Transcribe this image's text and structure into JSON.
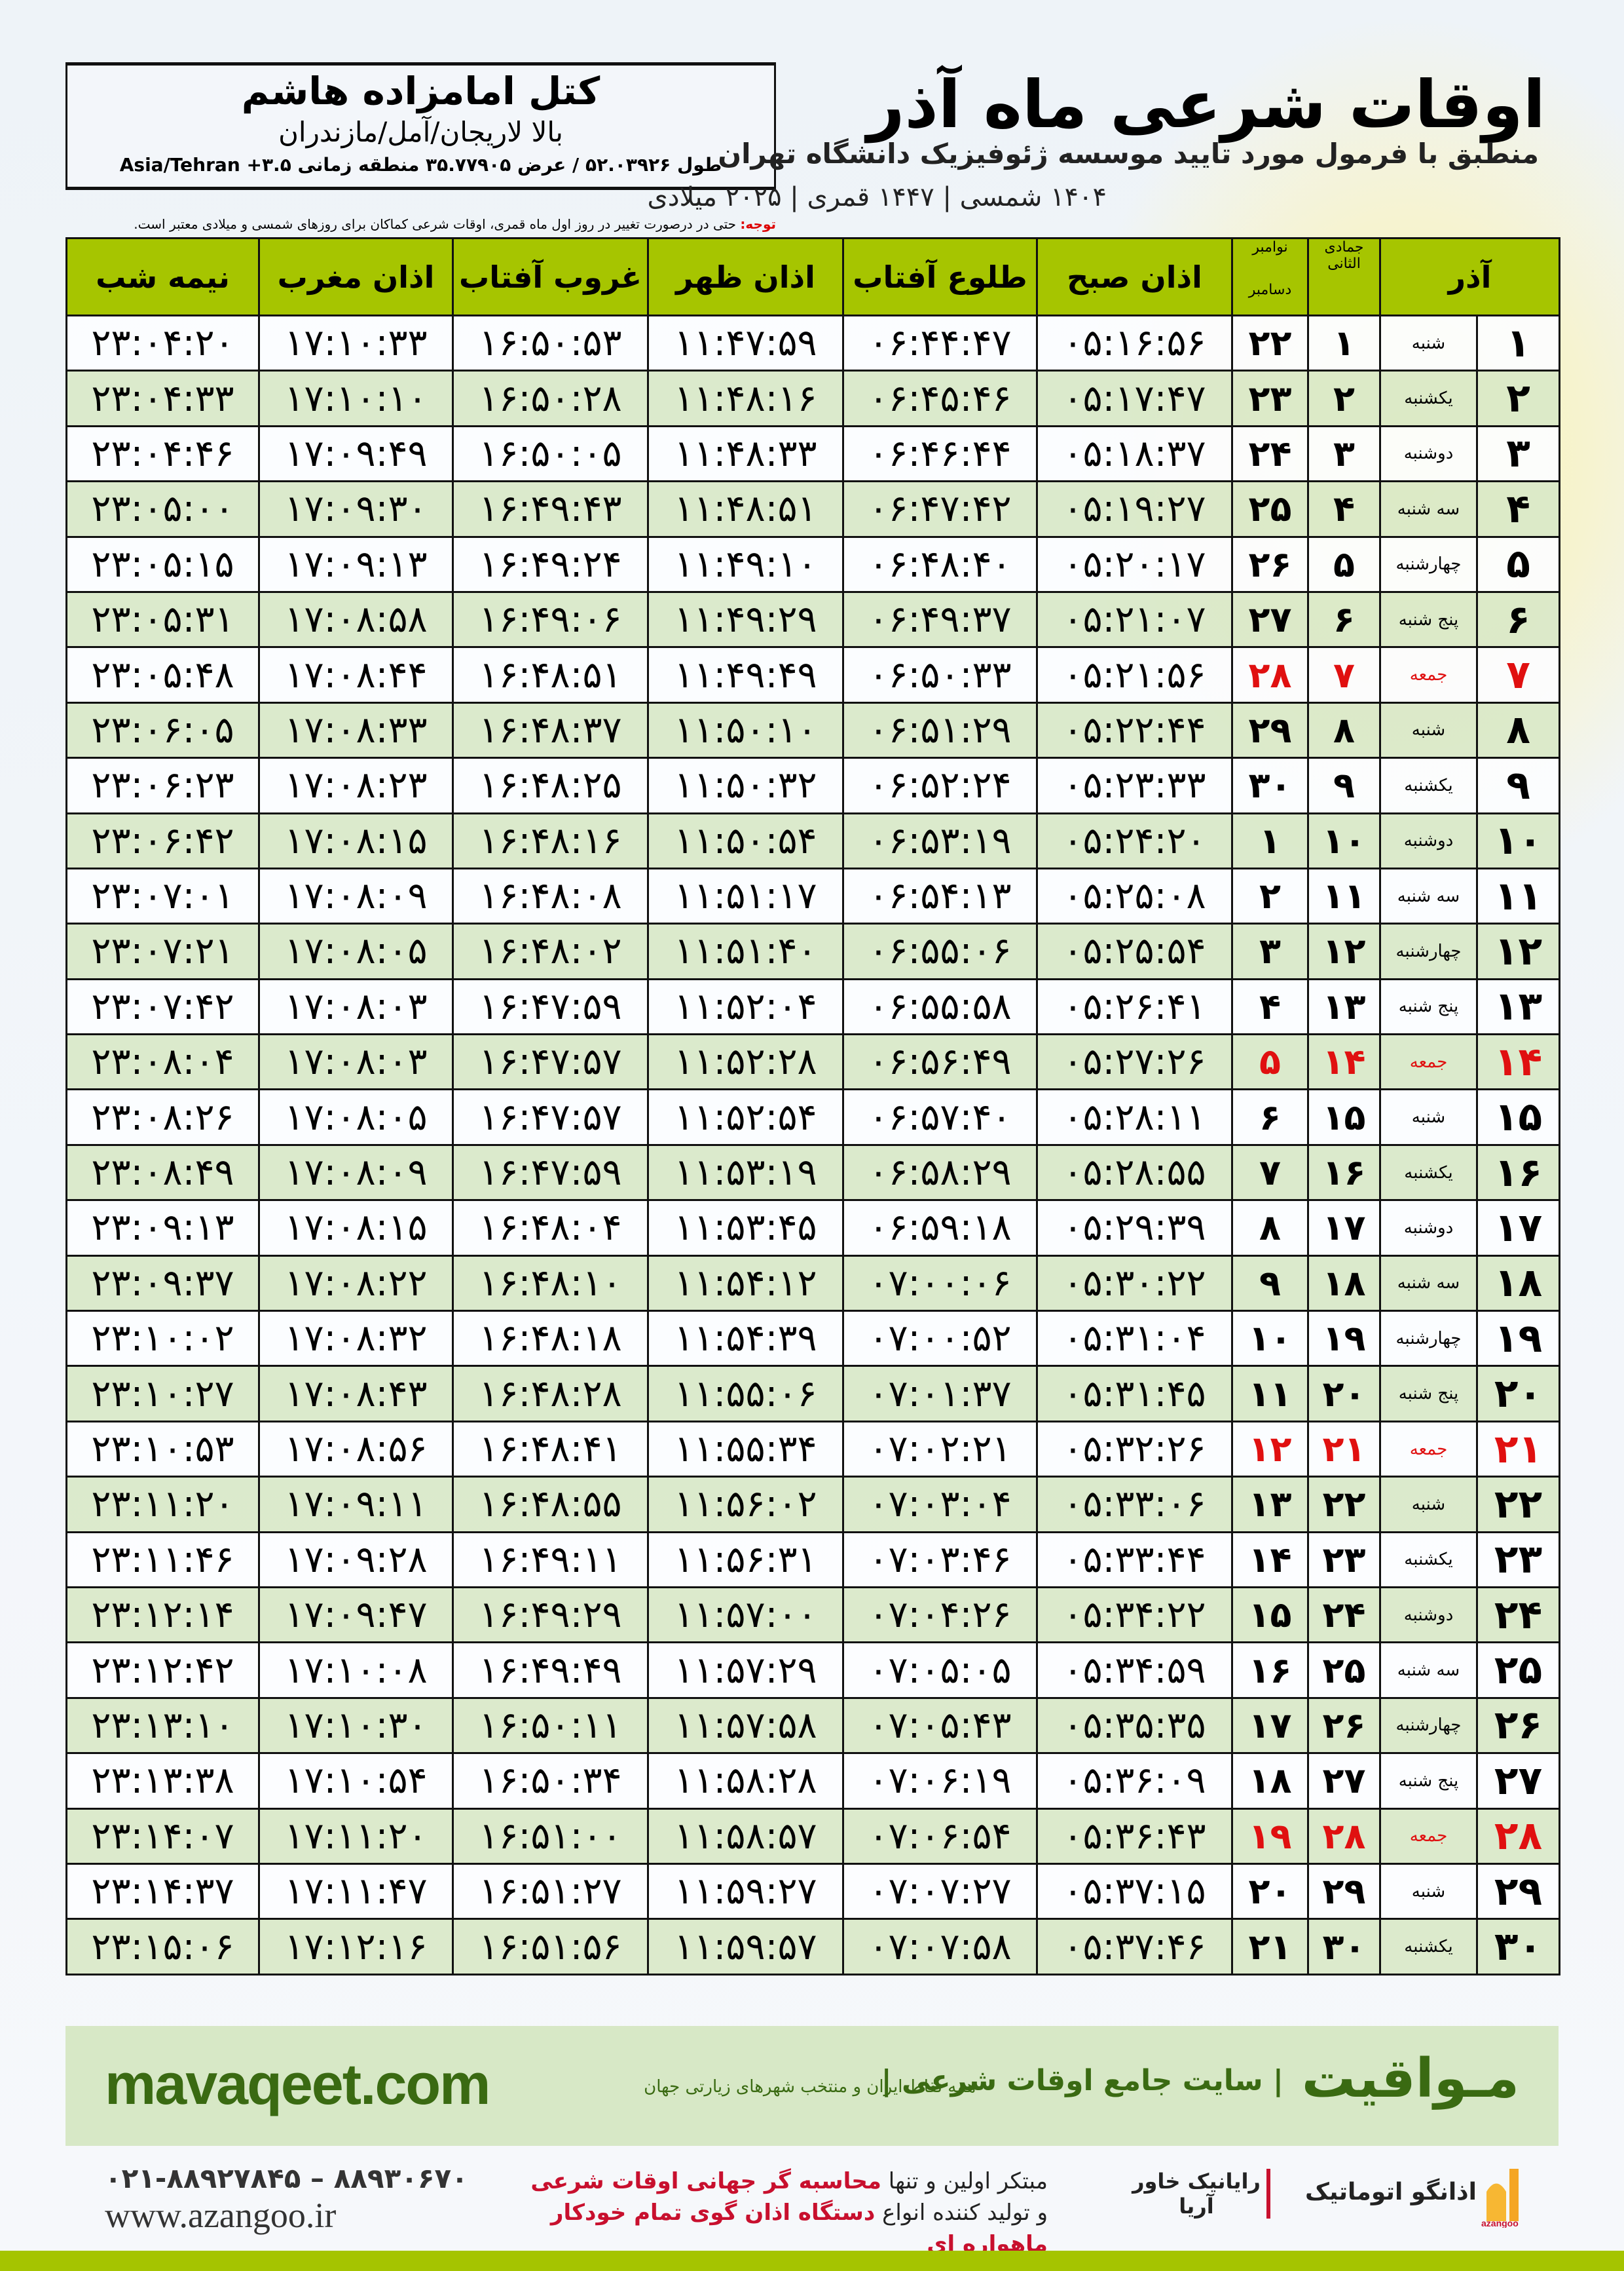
{
  "location": {
    "name": "کتل امامزاده هاشم",
    "region": "بالا لاریجان/آمل/مازندران",
    "coords": "طول ۵۲.۰۳۹۲۶ / عرض ۳۵.۷۷۹۰۵ منطقه زمانی ۳.۵+ Asia/Tehran"
  },
  "header": {
    "title": "اوقات شرعی ماه آذر",
    "subtitle": "منطبق با فرمول مورد تایید موسسه ژئوفیزیک دانشگاه تهران",
    "years": "۱۴۰۴ شمسی | ۱۴۴۷ قمری | ۲۰۲۵ میلادی"
  },
  "note": {
    "label": "توجه:",
    "text": " حتی در درصورت تغییر در روز اول ماه قمری، اوقات شرعی کماکان برای روزهای شمسی و میلادی معتبر است."
  },
  "columns": {
    "month": "آذر",
    "qamari": "جمادی الثانی",
    "miladi_top": "نوامبر",
    "miladi_bottom": "دسامبر",
    "sobh": "اذان صبح",
    "tolu": "طلوع آفتاب",
    "zohr": "اذان ظهر",
    "ghoroob": "غروب آفتاب",
    "maghrib": "اذان مغرب",
    "nimeshab": "نیمه شب"
  },
  "colors": {
    "header": "#a6c500",
    "alt_row": "#d9e8c8",
    "friday": "#e01010",
    "brand": "#3a6a12"
  },
  "rows": [
    [
      "۱",
      "شنبه",
      "۱",
      "۲۲",
      "۰۵:۱۶:۵۶",
      "۰۶:۴۴:۴۷",
      "۱۱:۴۷:۵۹",
      "۱۶:۵۰:۵۳",
      "۱۷:۱۰:۳۳",
      "۲۳:۰۴:۲۰"
    ],
    [
      "۲",
      "یکشنبه",
      "۲",
      "۲۳",
      "۰۵:۱۷:۴۷",
      "۰۶:۴۵:۴۶",
      "۱۱:۴۸:۱۶",
      "۱۶:۵۰:۲۸",
      "۱۷:۱۰:۱۰",
      "۲۳:۰۴:۳۳"
    ],
    [
      "۳",
      "دوشنبه",
      "۳",
      "۲۴",
      "۰۵:۱۸:۳۷",
      "۰۶:۴۶:۴۴",
      "۱۱:۴۸:۳۳",
      "۱۶:۵۰:۰۵",
      "۱۷:۰۹:۴۹",
      "۲۳:۰۴:۴۶"
    ],
    [
      "۴",
      "سه شنبه",
      "۴",
      "۲۵",
      "۰۵:۱۹:۲۷",
      "۰۶:۴۷:۴۲",
      "۱۱:۴۸:۵۱",
      "۱۶:۴۹:۴۳",
      "۱۷:۰۹:۳۰",
      "۲۳:۰۵:۰۰"
    ],
    [
      "۵",
      "چهارشنبه",
      "۵",
      "۲۶",
      "۰۵:۲۰:۱۷",
      "۰۶:۴۸:۴۰",
      "۱۱:۴۹:۱۰",
      "۱۶:۴۹:۲۴",
      "۱۷:۰۹:۱۳",
      "۲۳:۰۵:۱۵"
    ],
    [
      "۶",
      "پنج شنبه",
      "۶",
      "۲۷",
      "۰۵:۲۱:۰۷",
      "۰۶:۴۹:۳۷",
      "۱۱:۴۹:۲۹",
      "۱۶:۴۹:۰۶",
      "۱۷:۰۸:۵۸",
      "۲۳:۰۵:۳۱"
    ],
    [
      "۷",
      "جمعه",
      "۷",
      "۲۸",
      "۰۵:۲۱:۵۶",
      "۰۶:۵۰:۳۳",
      "۱۱:۴۹:۴۹",
      "۱۶:۴۸:۵۱",
      "۱۷:۰۸:۴۴",
      "۲۳:۰۵:۴۸"
    ],
    [
      "۸",
      "شنبه",
      "۸",
      "۲۹",
      "۰۵:۲۲:۴۴",
      "۰۶:۵۱:۲۹",
      "۱۱:۵۰:۱۰",
      "۱۶:۴۸:۳۷",
      "۱۷:۰۸:۳۳",
      "۲۳:۰۶:۰۵"
    ],
    [
      "۹",
      "یکشنبه",
      "۹",
      "۳۰",
      "۰۵:۲۳:۳۳",
      "۰۶:۵۲:۲۴",
      "۱۱:۵۰:۳۲",
      "۱۶:۴۸:۲۵",
      "۱۷:۰۸:۲۳",
      "۲۳:۰۶:۲۳"
    ],
    [
      "۱۰",
      "دوشنبه",
      "۱۰",
      "۱",
      "۰۵:۲۴:۲۰",
      "۰۶:۵۳:۱۹",
      "۱۱:۵۰:۵۴",
      "۱۶:۴۸:۱۶",
      "۱۷:۰۸:۱۵",
      "۲۳:۰۶:۴۲"
    ],
    [
      "۱۱",
      "سه شنبه",
      "۱۱",
      "۲",
      "۰۵:۲۵:۰۸",
      "۰۶:۵۴:۱۳",
      "۱۱:۵۱:۱۷",
      "۱۶:۴۸:۰۸",
      "۱۷:۰۸:۰۹",
      "۲۳:۰۷:۰۱"
    ],
    [
      "۱۲",
      "چهارشنبه",
      "۱۲",
      "۳",
      "۰۵:۲۵:۵۴",
      "۰۶:۵۵:۰۶",
      "۱۱:۵۱:۴۰",
      "۱۶:۴۸:۰۲",
      "۱۷:۰۸:۰۵",
      "۲۳:۰۷:۲۱"
    ],
    [
      "۱۳",
      "پنج شنبه",
      "۱۳",
      "۴",
      "۰۵:۲۶:۴۱",
      "۰۶:۵۵:۵۸",
      "۱۱:۵۲:۰۴",
      "۱۶:۴۷:۵۹",
      "۱۷:۰۸:۰۳",
      "۲۳:۰۷:۴۲"
    ],
    [
      "۱۴",
      "جمعه",
      "۱۴",
      "۵",
      "۰۵:۲۷:۲۶",
      "۰۶:۵۶:۴۹",
      "۱۱:۵۲:۲۸",
      "۱۶:۴۷:۵۷",
      "۱۷:۰۸:۰۳",
      "۲۳:۰۸:۰۴"
    ],
    [
      "۱۵",
      "شنبه",
      "۱۵",
      "۶",
      "۰۵:۲۸:۱۱",
      "۰۶:۵۷:۴۰",
      "۱۱:۵۲:۵۴",
      "۱۶:۴۷:۵۷",
      "۱۷:۰۸:۰۵",
      "۲۳:۰۸:۲۶"
    ],
    [
      "۱۶",
      "یکشنبه",
      "۱۶",
      "۷",
      "۰۵:۲۸:۵۵",
      "۰۶:۵۸:۲۹",
      "۱۱:۵۳:۱۹",
      "۱۶:۴۷:۵۹",
      "۱۷:۰۸:۰۹",
      "۲۳:۰۸:۴۹"
    ],
    [
      "۱۷",
      "دوشنبه",
      "۱۷",
      "۸",
      "۰۵:۲۹:۳۹",
      "۰۶:۵۹:۱۸",
      "۱۱:۵۳:۴۵",
      "۱۶:۴۸:۰۴",
      "۱۷:۰۸:۱۵",
      "۲۳:۰۹:۱۳"
    ],
    [
      "۱۸",
      "سه شنبه",
      "۱۸",
      "۹",
      "۰۵:۳۰:۲۲",
      "۰۷:۰۰:۰۶",
      "۱۱:۵۴:۱۲",
      "۱۶:۴۸:۱۰",
      "۱۷:۰۸:۲۲",
      "۲۳:۰۹:۳۷"
    ],
    [
      "۱۹",
      "چهارشنبه",
      "۱۹",
      "۱۰",
      "۰۵:۳۱:۰۴",
      "۰۷:۰۰:۵۲",
      "۱۱:۵۴:۳۹",
      "۱۶:۴۸:۱۸",
      "۱۷:۰۸:۳۲",
      "۲۳:۱۰:۰۲"
    ],
    [
      "۲۰",
      "پنج شنبه",
      "۲۰",
      "۱۱",
      "۰۵:۳۱:۴۵",
      "۰۷:۰۱:۳۷",
      "۱۱:۵۵:۰۶",
      "۱۶:۴۸:۲۸",
      "۱۷:۰۸:۴۳",
      "۲۳:۱۰:۲۷"
    ],
    [
      "۲۱",
      "جمعه",
      "۲۱",
      "۱۲",
      "۰۵:۳۲:۲۶",
      "۰۷:۰۲:۲۱",
      "۱۱:۵۵:۳۴",
      "۱۶:۴۸:۴۱",
      "۱۷:۰۸:۵۶",
      "۲۳:۱۰:۵۳"
    ],
    [
      "۲۲",
      "شنبه",
      "۲۲",
      "۱۳",
      "۰۵:۳۳:۰۶",
      "۰۷:۰۳:۰۴",
      "۱۱:۵۶:۰۲",
      "۱۶:۴۸:۵۵",
      "۱۷:۰۹:۱۱",
      "۲۳:۱۱:۲۰"
    ],
    [
      "۲۳",
      "یکشنبه",
      "۲۳",
      "۱۴",
      "۰۵:۳۳:۴۴",
      "۰۷:۰۳:۴۶",
      "۱۱:۵۶:۳۱",
      "۱۶:۴۹:۱۱",
      "۱۷:۰۹:۲۸",
      "۲۳:۱۱:۴۶"
    ],
    [
      "۲۴",
      "دوشنبه",
      "۲۴",
      "۱۵",
      "۰۵:۳۴:۲۲",
      "۰۷:۰۴:۲۶",
      "۱۱:۵۷:۰۰",
      "۱۶:۴۹:۲۹",
      "۱۷:۰۹:۴۷",
      "۲۳:۱۲:۱۴"
    ],
    [
      "۲۵",
      "سه شنبه",
      "۲۵",
      "۱۶",
      "۰۵:۳۴:۵۹",
      "۰۷:۰۵:۰۵",
      "۱۱:۵۷:۲۹",
      "۱۶:۴۹:۴۹",
      "۱۷:۱۰:۰۸",
      "۲۳:۱۲:۴۲"
    ],
    [
      "۲۶",
      "چهارشنبه",
      "۲۶",
      "۱۷",
      "۰۵:۳۵:۳۵",
      "۰۷:۰۵:۴۳",
      "۱۱:۵۷:۵۸",
      "۱۶:۵۰:۱۱",
      "۱۷:۱۰:۳۰",
      "۲۳:۱۳:۱۰"
    ],
    [
      "۲۷",
      "پنج شنبه",
      "۲۷",
      "۱۸",
      "۰۵:۳۶:۰۹",
      "۰۷:۰۶:۱۹",
      "۱۱:۵۸:۲۸",
      "۱۶:۵۰:۳۴",
      "۱۷:۱۰:۵۴",
      "۲۳:۱۳:۳۸"
    ],
    [
      "۲۸",
      "جمعه",
      "۲۸",
      "۱۹",
      "۰۵:۳۶:۴۳",
      "۰۷:۰۶:۵۴",
      "۱۱:۵۸:۵۷",
      "۱۶:۵۱:۰۰",
      "۱۷:۱۱:۲۰",
      "۲۳:۱۴:۰۷"
    ],
    [
      "۲۹",
      "شنبه",
      "۲۹",
      "۲۰",
      "۰۵:۳۷:۱۵",
      "۰۷:۰۷:۲۷",
      "۱۱:۵۹:۲۷",
      "۱۶:۵۱:۲۷",
      "۱۷:۱۱:۴۷",
      "۲۳:۱۴:۳۷"
    ],
    [
      "۳۰",
      "یکشنبه",
      "۳۰",
      "۲۱",
      "۰۵:۳۷:۴۶",
      "۰۷:۰۷:۵۸",
      "۱۱:۵۹:۵۷",
      "۱۶:۵۱:۵۶",
      "۱۷:۱۲:۱۶",
      "۲۳:۱۵:۰۶"
    ]
  ],
  "friday_label": "جمعه",
  "banner": {
    "brand": "مـواقیت",
    "slogan": "| سایت جامع اوقات شرعی |",
    "slogan2": "همه نقاط ایران و منتخب شهرهای زیارتی جهان",
    "site": "mavaqeet.com"
  },
  "footer": {
    "phones": "۰۲۱-۸۸۹۲۷۸۴۵ – ۸۸۹۳۰۶۷۰",
    "web": "www.azangoo.ir",
    "promo1a": "مبتکر اولین و تنها ",
    "promo1b": "محاسبه گر جهانی اوقات شرعی",
    "promo2a": "و تولید کننده انواع ",
    "promo2b": "دستگاه اذان گوی تمام خودکار ماهواره ای",
    "logo_rayanik": "رایانیک خاور آریا",
    "logo_azangoo": "اذانگو اتوماتیک",
    "logo_azangoo_en": "azangoo"
  }
}
